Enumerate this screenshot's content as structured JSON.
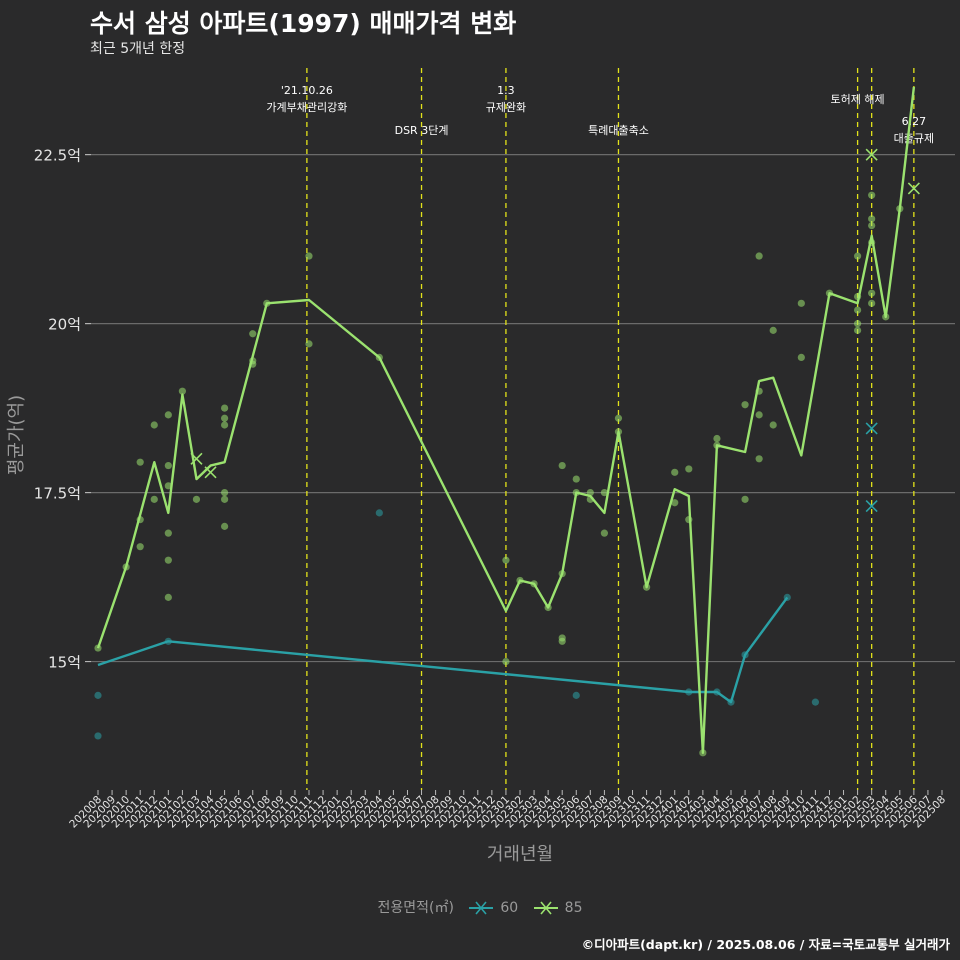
{
  "header": {
    "title": "수서 삼성 아파트(1997) 매매가격 변화",
    "subtitle": "최근 5개년 한정"
  },
  "caption": "©디아파트(dapt.kr) / 2025.08.06 / 자료=국토교통부 실거래가",
  "legend": {
    "title": "전용면적(㎡)",
    "items": [
      {
        "label": "60",
        "color": "#2aa1a6"
      },
      {
        "label": "85",
        "color": "#9be26f"
      }
    ]
  },
  "chart_data": {
    "type": "line",
    "xlabel": "거래년월",
    "ylabel": "평균가(억)",
    "ylim": [
      13.1,
      23.9
    ],
    "y_ticks": [
      15,
      17.5,
      20,
      22.5
    ],
    "y_tick_labels": [
      "15억",
      "17.5억",
      "20억",
      "22.5억"
    ],
    "x_ticks": [
      "202008",
      "202009",
      "202010",
      "202011",
      "202012",
      "202101",
      "202102",
      "202103",
      "202104",
      "202105",
      "202106",
      "202107",
      "202108",
      "202109",
      "202110",
      "202111",
      "202112",
      "202201",
      "202202",
      "202203",
      "202204",
      "202205",
      "202206",
      "202207",
      "202208",
      "202209",
      "202210",
      "202211",
      "202212",
      "202301",
      "202302",
      "202303",
      "202304",
      "202305",
      "202306",
      "202307",
      "202308",
      "202309",
      "202310",
      "202311",
      "202312",
      "202401",
      "202402",
      "202403",
      "202404",
      "202405",
      "202406",
      "202407",
      "202408",
      "202409",
      "202410",
      "202411",
      "202412",
      "202501",
      "202502",
      "202503",
      "202504",
      "202505",
      "202506",
      "202507",
      "202508"
    ],
    "grid": true,
    "events": [
      {
        "x": "202110.85",
        "lines": [
          "'21.10.26",
          "가계부채관리강화"
        ],
        "row": 1
      },
      {
        "x": "202207",
        "lines": [
          "DSR 3단계"
        ],
        "row": 2
      },
      {
        "x": "202301",
        "lines": [
          "1.3",
          "규제완화"
        ],
        "row": 1
      },
      {
        "x": "202309",
        "lines": [
          "특례대출축소"
        ],
        "row": 2
      },
      {
        "x": "202502",
        "lines": [
          "토허제 해제"
        ],
        "row": 1
      },
      {
        "x": "202503",
        "lines": [],
        "row": 0
      },
      {
        "x": "202506",
        "lines": [
          "6.27",
          "대출규제"
        ],
        "row": 2
      }
    ],
    "series": [
      {
        "name": "60",
        "color": "#2aa1a6",
        "line": [
          [
            "202008",
            14.95
          ],
          [
            "202101",
            15.3
          ],
          [
            "202402",
            14.55
          ],
          [
            "202404",
            14.55
          ],
          [
            "202405",
            14.4
          ],
          [
            "202406",
            15.1
          ],
          [
            "202409",
            15.95
          ]
        ],
        "points": [
          [
            "202008",
            14.5
          ],
          [
            "202008",
            13.9
          ],
          [
            "202101",
            15.3
          ],
          [
            "202204",
            17.2
          ],
          [
            "202306",
            14.5
          ],
          [
            "202402",
            14.55
          ],
          [
            "202404",
            14.55
          ],
          [
            "202405",
            14.4
          ],
          [
            "202406",
            15.1
          ],
          [
            "202409",
            15.95
          ],
          [
            "202411",
            14.4
          ]
        ],
        "marks": [
          [
            "202503",
            18.45
          ],
          [
            "202503",
            17.3
          ]
        ]
      },
      {
        "name": "85",
        "color": "#9be26f",
        "line": [
          [
            "202008",
            15.2
          ],
          [
            "202010",
            16.4
          ],
          [
            "202012",
            17.95
          ],
          [
            "202101",
            17.2
          ],
          [
            "202102",
            18.95
          ],
          [
            "202103",
            17.7
          ],
          [
            "202104",
            17.9
          ],
          [
            "202105",
            17.95
          ],
          [
            "202108",
            20.3
          ],
          [
            "202111",
            20.35
          ],
          [
            "202204",
            19.5
          ],
          [
            "202301",
            15.75
          ],
          [
            "202302",
            16.2
          ],
          [
            "202303",
            16.15
          ],
          [
            "202304",
            15.8
          ],
          [
            "202305",
            16.3
          ],
          [
            "202306",
            17.5
          ],
          [
            "202307",
            17.45
          ],
          [
            "202308",
            17.2
          ],
          [
            "202309",
            18.4
          ],
          [
            "202311",
            16.1
          ],
          [
            "202401",
            17.55
          ],
          [
            "202402",
            17.45
          ],
          [
            "202403",
            13.65
          ],
          [
            "202404",
            18.2
          ],
          [
            "202406",
            18.1
          ],
          [
            "202407",
            19.15
          ],
          [
            "202408",
            19.2
          ],
          [
            "202410",
            18.05
          ],
          [
            "202412",
            20.45
          ],
          [
            "202502",
            20.3
          ],
          [
            "202503",
            21.3
          ],
          [
            "202504",
            20.1
          ],
          [
            "202505",
            21.7
          ],
          [
            "202506",
            23.5
          ]
        ],
        "points": [
          [
            "202008",
            15.2
          ],
          [
            "202010",
            16.4
          ],
          [
            "202011",
            17.1
          ],
          [
            "202011",
            16.7
          ],
          [
            "202011",
            17.95
          ],
          [
            "202012",
            17.4
          ],
          [
            "202012",
            18.5
          ],
          [
            "202101",
            18.65
          ],
          [
            "202101",
            17.9
          ],
          [
            "202101",
            17.6
          ],
          [
            "202101",
            16.9
          ],
          [
            "202101",
            16.5
          ],
          [
            "202101",
            15.95
          ],
          [
            "202102",
            19.0
          ],
          [
            "202103",
            17.4
          ],
          [
            "202105",
            17.5
          ],
          [
            "202105",
            17.4
          ],
          [
            "202105",
            17.0
          ],
          [
            "202105",
            18.5
          ],
          [
            "202105",
            18.6
          ],
          [
            "202105",
            18.75
          ],
          [
            "202107",
            19.85
          ],
          [
            "202107",
            19.45
          ],
          [
            "202107",
            19.4
          ],
          [
            "202108",
            20.3
          ],
          [
            "202111",
            21.0
          ],
          [
            "202111",
            19.7
          ],
          [
            "202204",
            19.5
          ],
          [
            "202301",
            16.5
          ],
          [
            "202301",
            15.0
          ],
          [
            "202302",
            16.2
          ],
          [
            "202303",
            16.15
          ],
          [
            "202304",
            15.8
          ],
          [
            "202305",
            17.9
          ],
          [
            "202305",
            16.3
          ],
          [
            "202305",
            15.35
          ],
          [
            "202305",
            15.3
          ],
          [
            "202306",
            17.7
          ],
          [
            "202306",
            17.5
          ],
          [
            "202307",
            17.5
          ],
          [
            "202307",
            17.4
          ],
          [
            "202308",
            17.5
          ],
          [
            "202308",
            16.9
          ],
          [
            "202309",
            18.6
          ],
          [
            "202309",
            18.4
          ],
          [
            "202311",
            16.1
          ],
          [
            "202401",
            17.8
          ],
          [
            "202401",
            17.35
          ],
          [
            "202402",
            17.85
          ],
          [
            "202402",
            17.1
          ],
          [
            "202403",
            13.65
          ],
          [
            "202404",
            18.3
          ],
          [
            "202404",
            18.2
          ],
          [
            "202406",
            18.8
          ],
          [
            "202406",
            17.4
          ],
          [
            "202407",
            21.0
          ],
          [
            "202407",
            19.0
          ],
          [
            "202407",
            18.65
          ],
          [
            "202407",
            18.0
          ],
          [
            "202408",
            19.9
          ],
          [
            "202408",
            18.5
          ],
          [
            "202410",
            20.3
          ],
          [
            "202410",
            19.5
          ],
          [
            "202412",
            20.45
          ],
          [
            "202502",
            21.0
          ],
          [
            "202502",
            20.4
          ],
          [
            "202502",
            20.2
          ],
          [
            "202502",
            20.0
          ],
          [
            "202502",
            19.9
          ],
          [
            "202503",
            21.9
          ],
          [
            "202503",
            21.55
          ],
          [
            "202503",
            21.45
          ],
          [
            "202503",
            21.2
          ],
          [
            "202503",
            20.45
          ],
          [
            "202503",
            20.3
          ],
          [
            "202504",
            20.1
          ],
          [
            "202505",
            21.7
          ]
        ],
        "marks": [
          [
            "202103",
            18.0
          ],
          [
            "202104",
            17.8
          ],
          [
            "202503",
            22.5
          ],
          [
            "202506",
            22.0
          ]
        ]
      }
    ]
  }
}
